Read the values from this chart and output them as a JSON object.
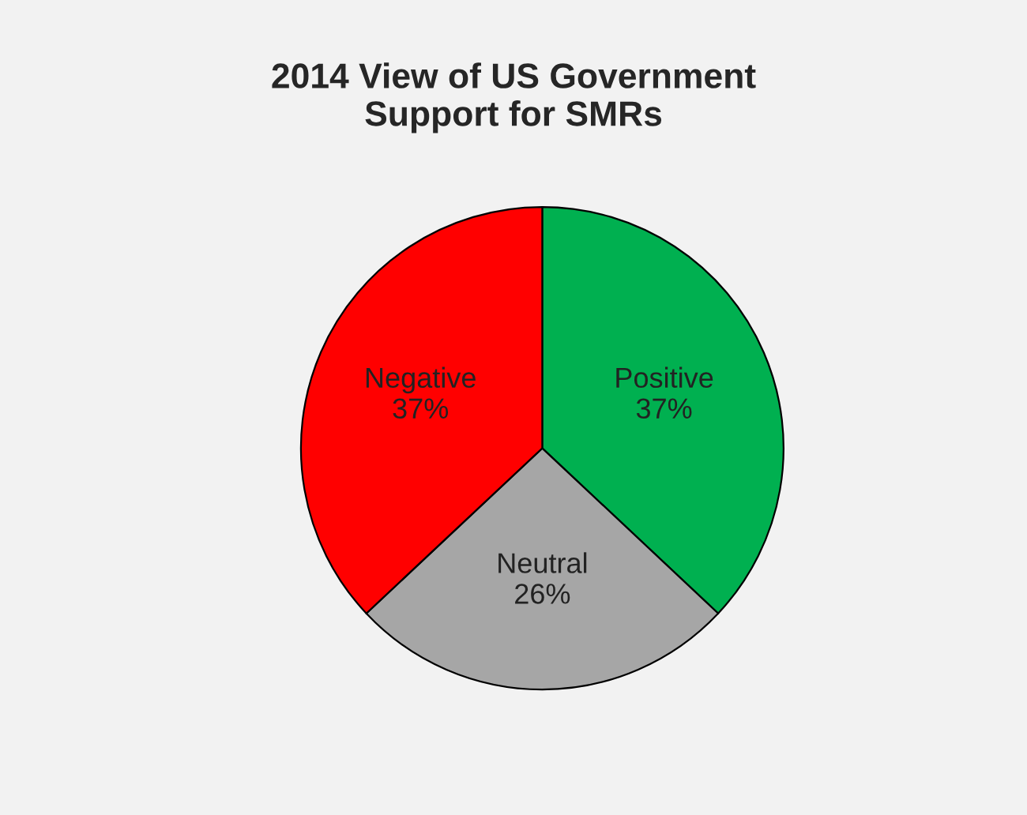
{
  "chart_data": {
    "type": "pie",
    "title": "2014 View of US Government\nSupport for SMRs",
    "categories": [
      "Positive",
      "Neutral",
      "Negative"
    ],
    "values": [
      37,
      26,
      37
    ],
    "value_labels": [
      "37%",
      "26%",
      "37%"
    ],
    "colors": [
      "#00b050",
      "#a6a6a6",
      "#ff0000"
    ]
  }
}
